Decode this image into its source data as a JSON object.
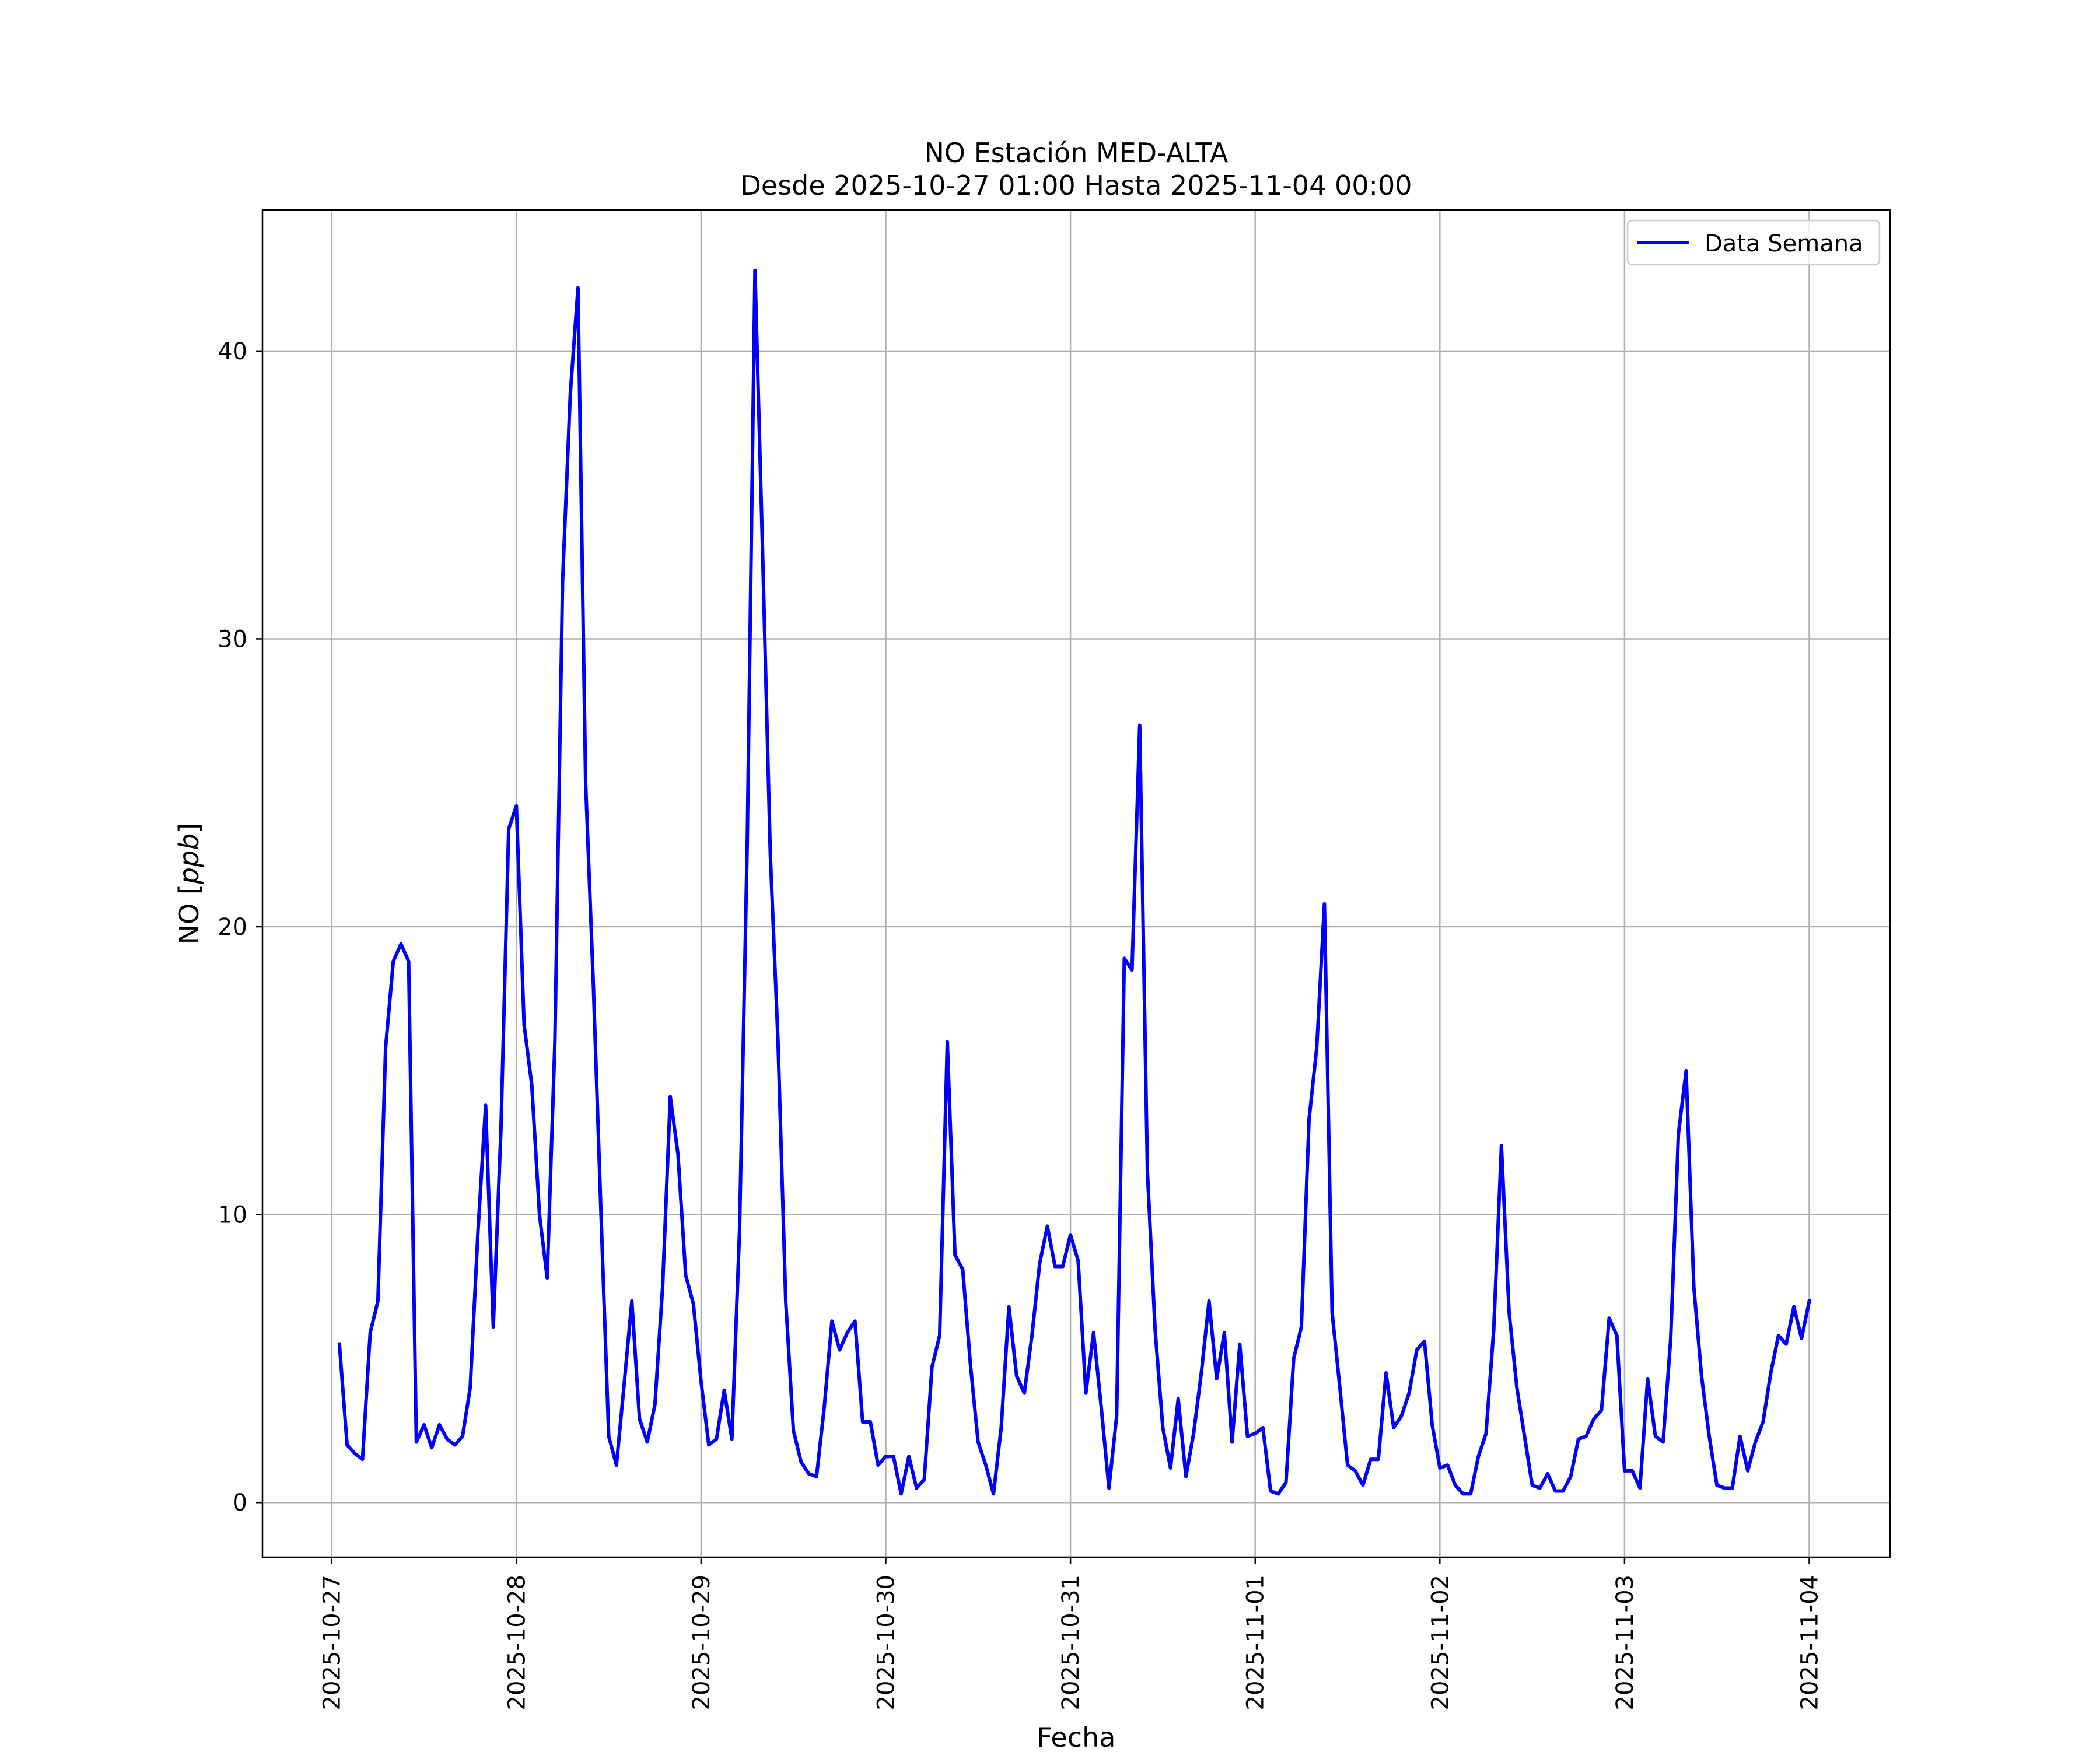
{
  "chart_data": {
    "type": "line",
    "title": "NO Estación MED-ALTA",
    "subtitle": "Desde 2025-10-27 01:00 Hasta 2025-11-04 00:00",
    "xlabel": "Fecha",
    "ylabel_prefix": "NO [",
    "ylabel_unit": "ppb",
    "ylabel_suffix": "]",
    "x_tick_labels": [
      "2025-10-27",
      "2025-10-28",
      "2025-10-29",
      "2025-10-30",
      "2025-10-31",
      "2025-11-01",
      "2025-11-02",
      "2025-11-03",
      "2025-11-04"
    ],
    "y_ticks": [
      0,
      10,
      20,
      30,
      40
    ],
    "xlim": [
      "2025-10-26 15:00",
      "2025-11-04 10:30"
    ],
    "ylim": [
      -1.9,
      44.9
    ],
    "grid": true,
    "legend_position": "top-right",
    "series": [
      {
        "name": "Data Semana",
        "color": "#0000ff",
        "start": "2025-10-27 01:00",
        "step_hours": 1,
        "values": [
          5.5,
          2.0,
          1.7,
          1.5,
          5.9,
          7.0,
          15.8,
          18.8,
          19.4,
          18.8,
          2.1,
          2.7,
          1.9,
          2.7,
          2.2,
          2.0,
          2.3,
          4.0,
          9.4,
          13.8,
          6.1,
          13.0,
          23.4,
          24.2,
          16.6,
          14.5,
          10.0,
          7.8,
          16.0,
          32.0,
          38.5,
          42.2,
          25.0,
          18.0,
          10.0,
          2.3,
          1.3,
          4.1,
          7.0,
          2.9,
          2.1,
          3.4,
          7.5,
          14.1,
          12.1,
          7.9,
          6.9,
          4.2,
          2.0,
          2.2,
          3.9,
          2.2,
          9.5,
          23.0,
          42.8,
          33.0,
          22.5,
          16.0,
          7.0,
          2.5,
          1.4,
          1.0,
          0.9,
          3.3,
          6.3,
          5.3,
          5.9,
          6.3,
          2.8,
          2.8,
          1.3,
          1.6,
          1.6,
          0.3,
          1.6,
          0.5,
          0.8,
          4.7,
          5.8,
          16.0,
          8.6,
          8.1,
          4.8,
          2.1,
          1.3,
          0.3,
          2.6,
          6.8,
          4.4,
          3.8,
          5.8,
          8.3,
          9.6,
          8.2,
          8.2,
          9.3,
          8.4,
          3.8,
          5.9,
          3.3,
          0.5,
          3.0,
          18.9,
          18.5,
          27.0,
          11.5,
          6.0,
          2.6,
          1.2,
          3.6,
          0.9,
          2.4,
          4.5,
          7.0,
          4.3,
          5.9,
          2.1,
          5.5,
          2.3,
          2.4,
          2.6,
          0.4,
          0.3,
          0.7,
          5.0,
          6.1,
          13.3,
          15.8,
          20.8,
          6.6,
          4.0,
          1.3,
          1.1,
          0.6,
          1.5,
          1.5,
          4.5,
          2.6,
          3.0,
          3.8,
          5.3,
          5.6,
          2.7,
          1.2,
          1.3,
          0.6,
          0.3,
          0.3,
          1.6,
          2.4,
          6.0,
          12.4,
          6.6,
          4.0,
          2.3,
          0.6,
          0.5,
          1.0,
          0.4,
          0.4,
          0.9,
          2.2,
          2.3,
          2.9,
          3.2,
          6.4,
          5.8,
          1.1,
          1.1,
          0.5,
          4.3,
          2.3,
          2.1,
          5.7,
          12.8,
          15.0,
          7.5,
          4.4,
          2.3,
          0.6,
          0.5,
          0.5,
          2.3,
          1.1,
          2.1,
          2.8,
          4.5,
          5.8,
          5.5,
          6.8,
          5.7,
          7.0
        ]
      }
    ]
  }
}
